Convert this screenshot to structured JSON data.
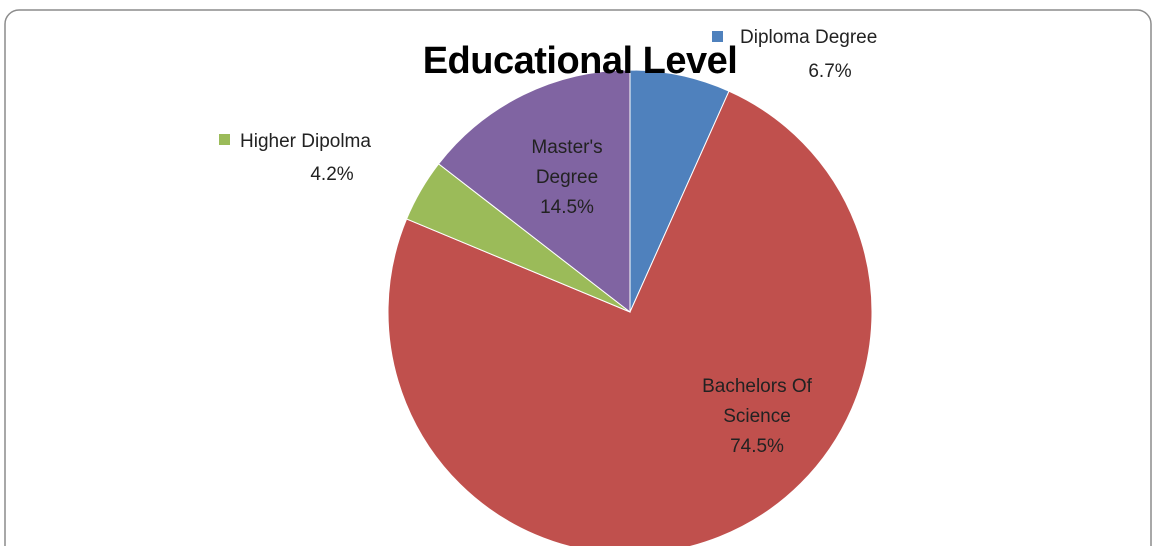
{
  "chart_data": {
    "type": "pie",
    "title": "Educational Level",
    "categories": [
      "Diploma Degree",
      "Bachelors Of Science",
      "Higher Dipolma",
      "Master's Degree"
    ],
    "values": [
      6.7,
      74.5,
      4.2,
      14.5
    ],
    "value_labels": [
      "6.7%",
      "74.5%",
      "4.2%",
      "14.5%"
    ],
    "colors": [
      "#4f81bd",
      "#c0504d",
      "#9bbb59",
      "#8064a2"
    ]
  }
}
